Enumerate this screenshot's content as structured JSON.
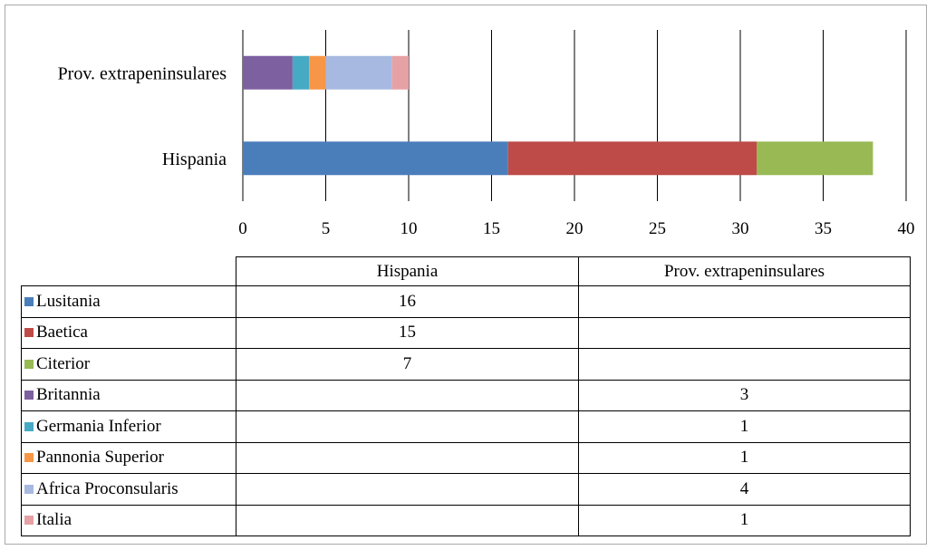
{
  "chart_data": {
    "type": "bar",
    "orientation": "horizontal",
    "stacked": true,
    "categories": [
      "Prov. extrapeninsulares",
      "Hispania"
    ],
    "series": [
      {
        "name": "Lusitania",
        "values": [
          null,
          16
        ],
        "color": "#4a7ebb"
      },
      {
        "name": "Baetica",
        "values": [
          null,
          15
        ],
        "color": "#be4b48"
      },
      {
        "name": "Citerior",
        "values": [
          null,
          7
        ],
        "color": "#98b954"
      },
      {
        "name": "Britannia",
        "values": [
          3,
          null
        ],
        "color": "#7d60a0"
      },
      {
        "name": "Germania Inferior",
        "values": [
          1,
          null
        ],
        "color": "#46aac5"
      },
      {
        "name": "Pannonia Superior",
        "values": [
          1,
          null
        ],
        "color": "#f79646"
      },
      {
        "name": "Africa Proconsularis",
        "values": [
          4,
          null
        ],
        "color": "#a7b9e0"
      },
      {
        "name": "Italia",
        "values": [
          1,
          null
        ],
        "color": "#e6a1a5"
      }
    ],
    "xlim": [
      0,
      40
    ],
    "xticks": [
      "0",
      "5",
      "10",
      "15",
      "20",
      "25",
      "30",
      "35",
      "40"
    ],
    "grid": "vertical",
    "legend": "data table below chart"
  },
  "table": {
    "headers": [
      "Hispania",
      "Prov. extrapeninsulares"
    ],
    "rows": [
      {
        "label": "Lusitania",
        "hispania": "16",
        "extra": ""
      },
      {
        "label": "Baetica",
        "hispania": "15",
        "extra": ""
      },
      {
        "label": "Citerior",
        "hispania": "7",
        "extra": ""
      },
      {
        "label": "Britannia",
        "hispania": "",
        "extra": "3"
      },
      {
        "label": "Germania Inferior",
        "hispania": "",
        "extra": "1"
      },
      {
        "label": "Pannonia Superior",
        "hispania": "",
        "extra": "1"
      },
      {
        "label": "Africa Proconsularis",
        "hispania": "",
        "extra": "4"
      },
      {
        "label": "Italia",
        "hispania": "",
        "extra": "1"
      }
    ]
  }
}
